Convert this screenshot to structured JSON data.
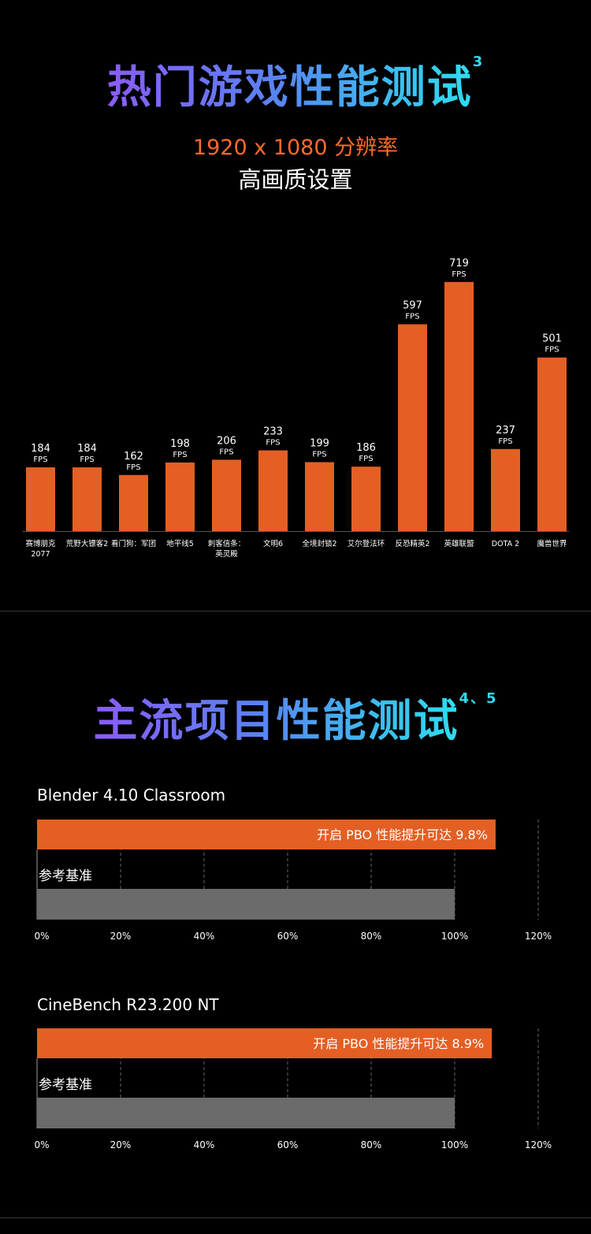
{
  "section1": {
    "title": "热门游戏性能测试",
    "title_sup": "3",
    "resolution": "1920 x 1080 分辨率",
    "quality": "高画质设置"
  },
  "section2": {
    "title": "主流项目性能测试",
    "title_sup": "4、5"
  },
  "colors": {
    "orange": "#e45f24",
    "gray": "#6b6b6b",
    "grid": "#666666"
  },
  "chart_data": [
    {
      "type": "bar",
      "categories": [
        "赛博朋克2077",
        "荒野大镖客2",
        "看门狗：军团",
        "地平线5",
        "刺客信条：英灵殿",
        "文明6",
        "全境封锁2",
        "艾尔登法环",
        "反恐精英2",
        "英雄联盟",
        "DOTA 2",
        "魔兽世界"
      ],
      "category_lines": [
        [
          "赛博朋克",
          "2077"
        ],
        [
          "荒野大镖客2"
        ],
        [
          "看门狗：军团"
        ],
        [
          "地平线5"
        ],
        [
          "刺客信条：",
          "英灵殿"
        ],
        [
          "文明6"
        ],
        [
          "全境封锁2"
        ],
        [
          "艾尔登法环"
        ],
        [
          "反恐精英2"
        ],
        [
          "英雄联盟"
        ],
        [
          "DOTA 2"
        ],
        [
          "魔兽世界"
        ]
      ],
      "values": [
        184,
        184,
        162,
        198,
        206,
        233,
        199,
        186,
        597,
        719,
        237,
        501
      ],
      "unit": "FPS",
      "ylim": [
        0,
        800
      ]
    },
    {
      "type": "bar",
      "orientation": "horizontal",
      "title": "Blender 4.10  Classroom",
      "series": [
        {
          "name": "开启 PBO 性能提升可达 9.8%",
          "values": [
            109.8
          ]
        },
        {
          "name": "参考基准",
          "values": [
            100
          ]
        }
      ],
      "xlim": [
        0,
        120
      ],
      "ticks": [
        "0%",
        "20%",
        "40%",
        "60%",
        "80%",
        "100%",
        "120%"
      ]
    },
    {
      "type": "bar",
      "orientation": "horizontal",
      "title": "CineBench R23.200  NT",
      "series": [
        {
          "name": "开启 PBO 性能提升可达 8.9%",
          "values": [
            108.9
          ]
        },
        {
          "name": "参考基准",
          "values": [
            100
          ]
        }
      ],
      "xlim": [
        0,
        120
      ],
      "ticks": [
        "0%",
        "20%",
        "40%",
        "60%",
        "80%",
        "100%",
        "120%"
      ]
    }
  ]
}
